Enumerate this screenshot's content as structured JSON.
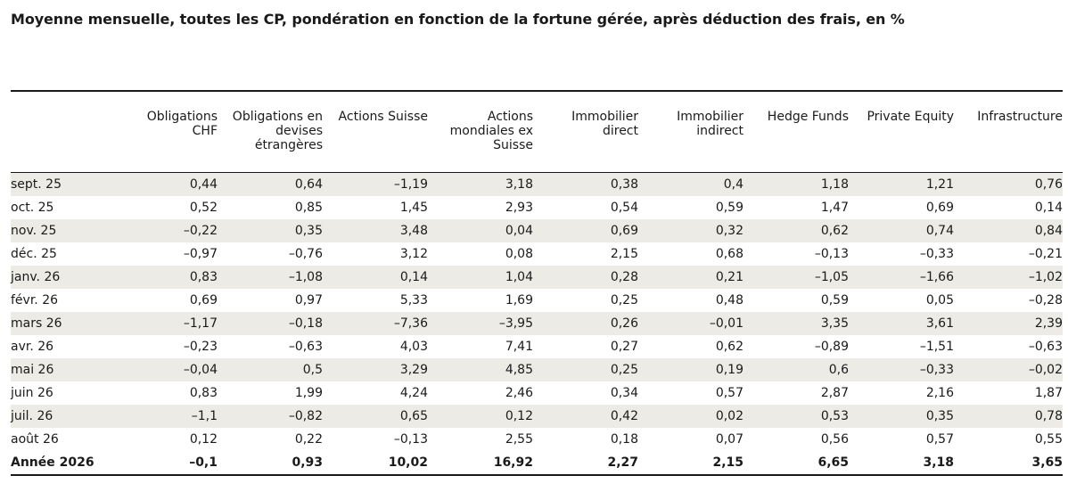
{
  "title": "Moyenne mensuelle, toutes les CP, pondération en fonction de la fortune gérée, après déduction des frais, en %",
  "columns": [
    "",
    "Obligations\nCHF",
    "Obligations en\ndevises\nétrangères",
    "Actions Suisse",
    "Actions\nmondiales ex\nSuisse",
    "Immobilier\ndirect",
    "Immobilier\nindirect",
    "Hedge Funds",
    "Private Equity",
    "Infrastructure"
  ],
  "rows": [
    [
      "sept. 25",
      "0,44",
      "0,64",
      "–1,19",
      "3,18",
      "0,38",
      "0,4",
      "1,18",
      "1,21",
      "0,76"
    ],
    [
      "oct. 25",
      "0,52",
      "0,85",
      "1,45",
      "2,93",
      "0,54",
      "0,59",
      "1,47",
      "0,69",
      "0,14"
    ],
    [
      "nov. 25",
      "–0,22",
      "0,35",
      "3,48",
      "0,04",
      "0,69",
      "0,32",
      "0,62",
      "0,74",
      "0,84"
    ],
    [
      "déc. 25",
      "–0,97",
      "–0,76",
      "3,12",
      "0,08",
      "2,15",
      "0,68",
      "–0,13",
      "–0,33",
      "–0,21"
    ],
    [
      "janv. 26",
      "0,83",
      "–1,08",
      "0,14",
      "1,04",
      "0,28",
      "0,21",
      "–1,05",
      "–1,66",
      "–1,02"
    ],
    [
      "févr. 26",
      "0,69",
      "0,97",
      "5,33",
      "1,69",
      "0,25",
      "0,48",
      "0,59",
      "0,05",
      "–0,28"
    ],
    [
      "mars 26",
      "–1,17",
      "–0,18",
      "–7,36",
      "–3,95",
      "0,26",
      "–0,01",
      "3,35",
      "3,61",
      "2,39"
    ],
    [
      "avr. 26",
      "–0,23",
      "–0,63",
      "4,03",
      "7,41",
      "0,27",
      "0,62",
      "–0,89",
      "–1,51",
      "–0,63"
    ],
    [
      "mai 26",
      "–0,04",
      "0,5",
      "3,29",
      "4,85",
      "0,25",
      "0,19",
      "0,6",
      "–0,33",
      "–0,02"
    ],
    [
      "juin 26",
      "0,83",
      "1,99",
      "4,24",
      "2,46",
      "0,34",
      "0,57",
      "2,87",
      "2,16",
      "1,87"
    ],
    [
      "juil. 26",
      "–1,1",
      "–0,82",
      "0,65",
      "0,12",
      "0,42",
      "0,02",
      "0,53",
      "0,35",
      "0,78"
    ],
    [
      "août 26",
      "0,12",
      "0,22",
      "–0,13",
      "2,55",
      "0,18",
      "0,07",
      "0,56",
      "0,57",
      "0,55"
    ]
  ],
  "total": [
    "Année 2026",
    "–0,1",
    "0,93",
    "10,02",
    "16,92",
    "2,27",
    "2,15",
    "6,65",
    "3,18",
    "3,65"
  ],
  "colors": {
    "shaded_row": "#ecebe5",
    "rule": "#1a1a1a"
  }
}
